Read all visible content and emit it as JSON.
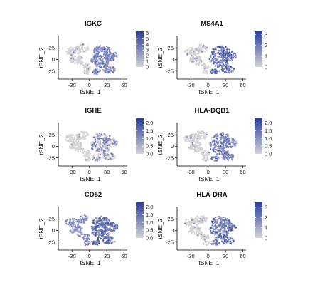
{
  "chart_data": [
    {
      "type": "scatter",
      "title": "IGKC",
      "xlabel": "tSNE_1",
      "ylabel": "tSNE_2",
      "xlim": [
        -50,
        63
      ],
      "ylim": [
        -38,
        40
      ],
      "xticks": [
        "-30",
        "0",
        "30",
        "60"
      ],
      "xtick_values": [
        -30,
        0,
        30,
        60
      ],
      "yticks": [
        "25",
        "0",
        "-25"
      ],
      "ytick_values": [
        25,
        0,
        -25
      ],
      "colorbar": {
        "ticks": [
          "6",
          "5",
          "4",
          "3",
          "2",
          "1",
          "0"
        ],
        "tick_values": [
          6,
          5,
          4,
          3,
          2,
          1,
          0
        ],
        "min": 0,
        "max": 6.3
      },
      "pattern": "right",
      "intensity": 0.55,
      "seed": 11,
      "low_color": "#d3d3d3",
      "high_color": "#2a3f94"
    },
    {
      "type": "scatter",
      "title": "MS4A1",
      "xlabel": "tSNE_1",
      "ylabel": "tSNE_2",
      "xlim": [
        -50,
        63
      ],
      "ylim": [
        -38,
        40
      ],
      "xticks": [
        "-30",
        "0",
        "30",
        "60"
      ],
      "xtick_values": [
        -30,
        0,
        30,
        60
      ],
      "yticks": [
        "25",
        "0",
        "-25"
      ],
      "ytick_values": [
        25,
        0,
        -25
      ],
      "colorbar": {
        "ticks": [
          "3",
          "2",
          "1",
          "0"
        ],
        "tick_values": [
          3,
          2,
          1,
          0
        ],
        "min": 0,
        "max": 3.3
      },
      "pattern": "right",
      "intensity": 0.75,
      "seed": 23,
      "low_color": "#d3d3d3",
      "high_color": "#2a3f94"
    },
    {
      "type": "scatter",
      "title": "IGHE",
      "xlabel": "tSNE_1",
      "ylabel": "tSNE_2",
      "xlim": [
        -50,
        63
      ],
      "ylim": [
        -38,
        40
      ],
      "xticks": [
        "-30",
        "0",
        "30",
        "60"
      ],
      "xtick_values": [
        -30,
        0,
        30,
        60
      ],
      "yticks": [
        "25",
        "0",
        "-25"
      ],
      "ytick_values": [
        25,
        0,
        -25
      ],
      "colorbar": {
        "ticks": [
          "2.0",
          "1.5",
          "1.0",
          "0.5",
          "0.0"
        ],
        "tick_values": [
          2,
          1.5,
          1,
          0.5,
          0
        ],
        "min": 0,
        "max": 2.3
      },
      "pattern": "sparse",
      "intensity": 0.45,
      "seed": 37,
      "low_color": "#d3d3d3",
      "high_color": "#2a3f94"
    },
    {
      "type": "scatter",
      "title": "HLA-DQB1",
      "xlabel": "tSNE_1",
      "ylabel": "tSNE_2",
      "xlim": [
        -50,
        63
      ],
      "ylim": [
        -38,
        40
      ],
      "xticks": [
        "-30",
        "0",
        "30",
        "60"
      ],
      "xtick_values": [
        -30,
        0,
        30,
        60
      ],
      "yticks": [
        "25",
        "0",
        "-25"
      ],
      "ytick_values": [
        25,
        0,
        -25
      ],
      "colorbar": {
        "ticks": [
          "2.0",
          "1.5",
          "1.0",
          "0.5",
          "0.0"
        ],
        "tick_values": [
          2,
          1.5,
          1,
          0.5,
          0
        ],
        "min": 0,
        "max": 2.3
      },
      "pattern": "right",
      "intensity": 0.6,
      "seed": 41,
      "low_color": "#d3d3d3",
      "high_color": "#2a3f94"
    },
    {
      "type": "scatter",
      "title": "CD52",
      "xlabel": "tSNE_1",
      "ylabel": "tSNE_2",
      "xlim": [
        -50,
        63
      ],
      "ylim": [
        -38,
        40
      ],
      "xticks": [
        "-30",
        "0",
        "30",
        "60"
      ],
      "xtick_values": [
        -30,
        0,
        30,
        60
      ],
      "yticks": [
        "25",
        "0",
        "-25"
      ],
      "ytick_values": [
        25,
        0,
        -25
      ],
      "colorbar": {
        "ticks": [
          "2.0",
          "1.5",
          "1.0",
          "0.5",
          "0.0"
        ],
        "tick_values": [
          2,
          1.5,
          1,
          0.5,
          0
        ],
        "min": 0,
        "max": 2.3
      },
      "pattern": "all",
      "intensity": 0.65,
      "seed": 53,
      "low_color": "#d3d3d3",
      "high_color": "#2a3f94"
    },
    {
      "type": "scatter",
      "title": "HLA-DRA",
      "xlabel": "tSNE_1",
      "ylabel": "tSNE_2",
      "xlim": [
        -50,
        63
      ],
      "ylim": [
        -38,
        40
      ],
      "xticks": [
        "-30",
        "0",
        "30",
        "60"
      ],
      "xtick_values": [
        -30,
        0,
        30,
        60
      ],
      "yticks": [
        "25",
        "0",
        "-25"
      ],
      "ytick_values": [
        25,
        0,
        -25
      ],
      "colorbar": {
        "ticks": [
          "3",
          "2",
          "1",
          "0"
        ],
        "tick_values": [
          3,
          2,
          1,
          0
        ],
        "min": 0,
        "max": 3.5
      },
      "pattern": "right",
      "intensity": 0.75,
      "seed": 67,
      "low_color": "#d3d3d3",
      "high_color": "#2a3f94"
    }
  ]
}
